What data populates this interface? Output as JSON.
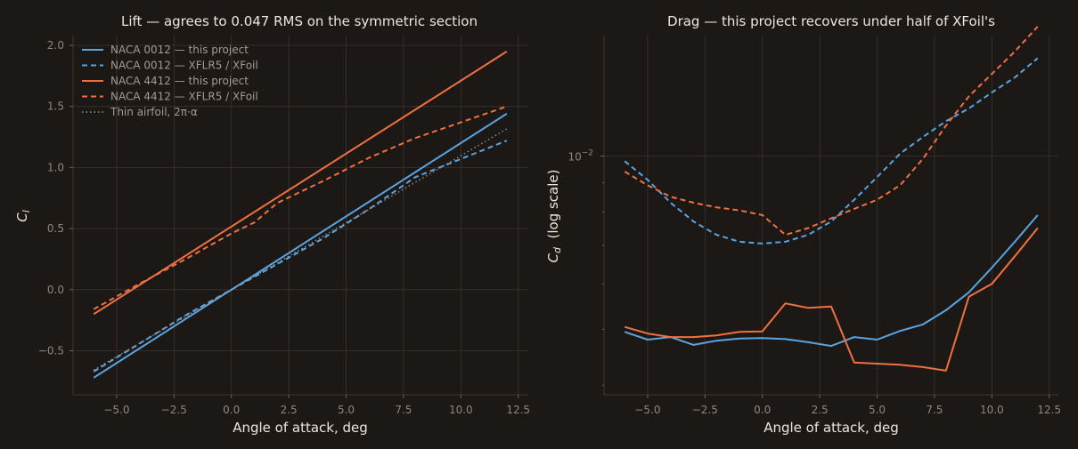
{
  "colors": {
    "background": "#1c1816",
    "naca0012": "#5aa4e0",
    "naca4412": "#f07040",
    "thin": "#9a938c"
  },
  "chart_data": [
    {
      "type": "line",
      "title": "Lift — agrees to 0.047 RMS on the symmetric section",
      "xlabel": "Angle of attack, deg",
      "ylabel": "C_l",
      "xlim": [
        -6.9,
        12.9
      ],
      "ylim": [
        -0.86,
        2.08
      ],
      "xticks": [
        "−5.0",
        "−2.5",
        "0.0",
        "2.5",
        "5.0",
        "7.5",
        "10.0",
        "12.5"
      ],
      "xtick_values": [
        -5,
        -2.5,
        0,
        2.5,
        5,
        7.5,
        10,
        12.5
      ],
      "yticks": [
        "−0.5",
        "0.0",
        "0.5",
        "1.0",
        "1.5",
        "2.0"
      ],
      "ytick_values": [
        -0.5,
        0,
        0.5,
        1.0,
        1.5,
        2.0
      ],
      "grid": true,
      "legend_position": "top-left",
      "series": [
        {
          "name": "NACA 0012 — this project",
          "color": "#5aa4e0",
          "style": "solid",
          "x": [
            -6,
            12
          ],
          "y": [
            -0.72,
            1.44
          ]
        },
        {
          "name": "NACA 0012 — XFLR5 / XFoil",
          "color": "#5aa4e0",
          "style": "dashed",
          "x": [
            -6,
            -4,
            -2,
            0,
            2,
            4,
            6,
            7,
            8,
            10,
            12
          ],
          "y": [
            -0.67,
            -0.44,
            -0.21,
            0.0,
            0.21,
            0.42,
            0.66,
            0.79,
            0.92,
            1.07,
            1.22
          ]
        },
        {
          "name": "NACA 4412 — this project",
          "color": "#f07040",
          "style": "solid",
          "x": [
            -6,
            12
          ],
          "y": [
            -0.2,
            1.95
          ]
        },
        {
          "name": "NACA 4412 — XFLR5 / XFoil",
          "color": "#f07040",
          "style": "dashed",
          "x": [
            -6,
            -4,
            -2,
            0,
            1,
            2,
            4,
            6,
            8,
            10,
            12
          ],
          "y": [
            -0.16,
            0.05,
            0.25,
            0.46,
            0.55,
            0.71,
            0.89,
            1.08,
            1.24,
            1.37,
            1.5
          ]
        },
        {
          "name": "Thin airfoil, 2π·α",
          "color": "#9a938c",
          "style": "dotted",
          "x": [
            -6,
            12
          ],
          "y": [
            -0.658,
            1.316
          ]
        }
      ]
    },
    {
      "type": "line",
      "title": "Drag — this project recovers under half of XFoil's",
      "xlabel": "Angle of attack, deg",
      "ylabel": "C_d  (log scale)",
      "yscale": "log",
      "xlim": [
        -6.9,
        12.9
      ],
      "ylim": [
        0.00385,
        0.0162
      ],
      "xticks": [
        "−5.0",
        "−2.5",
        "0.0",
        "2.5",
        "5.0",
        "7.5",
        "10.0",
        "12.5"
      ],
      "xtick_values": [
        -5,
        -2.5,
        0,
        2.5,
        5,
        7.5,
        10,
        12.5
      ],
      "ytick_base": "10",
      "ytick_exponent": "−2",
      "ytick_value": 0.01,
      "grid": true,
      "series": [
        {
          "name": "NACA 0012 — this project",
          "color": "#5aa4e0",
          "style": "solid",
          "x": [
            -6,
            -5,
            -4,
            -3,
            -2,
            -1,
            0,
            1,
            2,
            3,
            4,
            5,
            6,
            7,
            8,
            9,
            10,
            11,
            12
          ],
          "y": [
            0.00495,
            0.0048,
            0.00485,
            0.0047,
            0.00478,
            0.00482,
            0.00483,
            0.00481,
            0.00475,
            0.00468,
            0.00485,
            0.0048,
            0.00497,
            0.0051,
            0.0054,
            0.0058,
            0.0064,
            0.0071,
            0.0079
          ]
        },
        {
          "name": "NACA 0012 — XFLR5 / XFoil",
          "color": "#5aa4e0",
          "style": "dashed",
          "x": [
            -6,
            -5,
            -4,
            -3,
            -2,
            -1,
            0,
            1,
            2,
            3,
            4,
            5,
            6,
            7,
            8,
            9,
            10,
            11,
            12
          ],
          "y": [
            0.0098,
            0.0091,
            0.0083,
            0.0077,
            0.0073,
            0.0071,
            0.00705,
            0.0071,
            0.0073,
            0.0077,
            0.0084,
            0.0092,
            0.0101,
            0.0108,
            0.0115,
            0.0121,
            0.0129,
            0.0137,
            0.0148
          ]
        },
        {
          "name": "NACA 4412 — this project",
          "color": "#f07040",
          "style": "solid",
          "x": [
            -6,
            -5,
            -4,
            -3,
            -2,
            -1,
            0,
            1,
            2,
            3,
            4,
            5,
            6,
            7,
            8,
            9,
            10,
            11,
            12
          ],
          "y": [
            0.00505,
            0.00492,
            0.00485,
            0.00485,
            0.00488,
            0.00495,
            0.00496,
            0.00555,
            0.00545,
            0.00548,
            0.00438,
            0.00436,
            0.00434,
            0.0043,
            0.00424,
            0.0057,
            0.006,
            0.0067,
            0.0075
          ]
        },
        {
          "name": "NACA 4412 — XFLR5 / XFoil",
          "color": "#f07040",
          "style": "dashed",
          "x": [
            -6,
            -5,
            -4,
            -3,
            -2,
            -1,
            0,
            1,
            2,
            3,
            4,
            5,
            6,
            7,
            8,
            9,
            10,
            11,
            12
          ],
          "y": [
            0.0094,
            0.0089,
            0.0085,
            0.0083,
            0.00815,
            0.00805,
            0.0079,
            0.0073,
            0.0075,
            0.0078,
            0.0081,
            0.0084,
            0.0089,
            0.0099,
            0.0113,
            0.0127,
            0.0139,
            0.0152,
            0.0168
          ]
        }
      ]
    }
  ]
}
